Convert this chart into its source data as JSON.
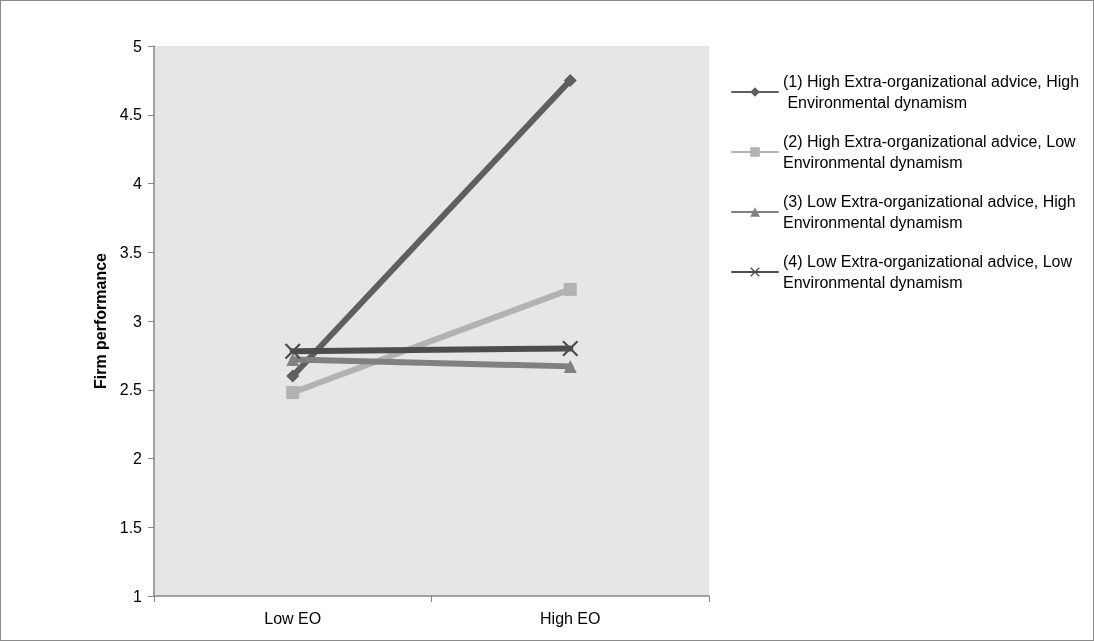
{
  "chart_data": {
    "type": "line",
    "ylabel": "Firm performance",
    "categories": [
      "Low EO",
      "High EO"
    ],
    "ylim": [
      1,
      5
    ],
    "yticks": [
      1,
      1.5,
      2,
      2.5,
      3,
      3.5,
      4,
      4.5,
      5
    ],
    "legend": "right",
    "grid": false,
    "line_style": "solid",
    "series": [
      {
        "name": "(1) High Extra-organizational advice, High Environmental dynamism",
        "color": "#5f5f5f",
        "marker": "diamond",
        "values": [
          2.6,
          4.75
        ]
      },
      {
        "name": "(2) High Extra-organizational advice, Low Environmental dynamism",
        "color": "#b2b2b2",
        "marker": "square",
        "values": [
          2.48,
          3.23
        ]
      },
      {
        "name": "(3) Low Extra-organizational advice, High Environmental dynamism",
        "color": "#808080",
        "marker": "triangle",
        "values": [
          2.72,
          2.67
        ]
      },
      {
        "name": "(4) Low Extra-organizational advice, Low Environmental dynamism",
        "color": "#4d4d4d",
        "marker": "cross",
        "values": [
          2.78,
          2.8
        ]
      }
    ]
  }
}
